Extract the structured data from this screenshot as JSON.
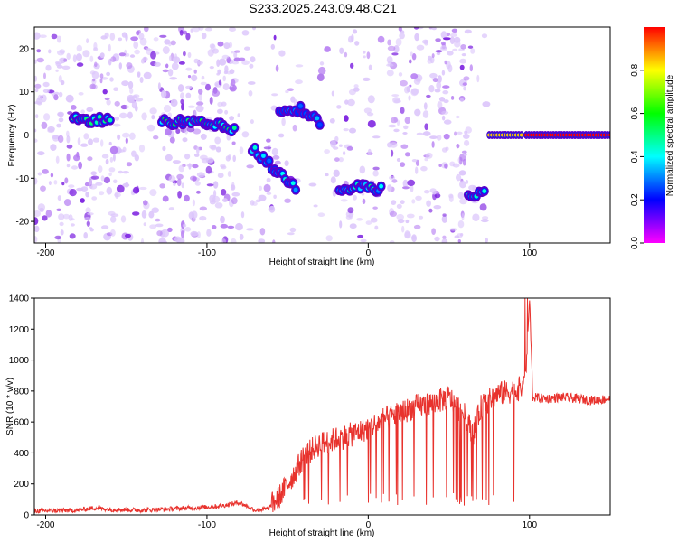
{
  "title": "S233.2025.243.09.48.C21",
  "chart_data": [
    {
      "type": "heatmap",
      "xlabel": "Height of straight line (km)",
      "ylabel": "Frequency (Hz)",
      "xlim": [
        -207,
        150
      ],
      "ylim": [
        -25,
        25
      ],
      "xticks": [
        "-200",
        "-100",
        "0",
        "100"
      ],
      "yticks": [
        "20",
        "10",
        "0",
        "-10",
        "-20"
      ],
      "colorbar": {
        "label": "Normalized spectral amplitude",
        "range": [
          0,
          1
        ],
        "ticks": [
          "0.0",
          "0.2",
          "0.4",
          "0.6",
          "0.8"
        ],
        "colors": [
          "#ff00ff",
          "#0000ff",
          "#00ffff",
          "#00ff00",
          "#ffff00",
          "#ff0000"
        ]
      },
      "tracks": [
        {
          "x": [
            -183,
            -160
          ],
          "y": [
            3.5,
            3.5
          ],
          "amplitude": 0.45
        },
        {
          "x": [
            -128,
            -115,
            -100,
            -90,
            -83
          ],
          "y": [
            3,
            3,
            2.5,
            2,
            1
          ],
          "amplitude": 0.5
        },
        {
          "x": [
            -72,
            -58,
            -45
          ],
          "y": [
            -3,
            -8,
            -12
          ],
          "amplitude": 0.35
        },
        {
          "x": [
            -55,
            -42,
            -30
          ],
          "y": [
            6,
            6,
            3
          ],
          "amplitude": 0.3
        },
        {
          "x": [
            -18,
            -5,
            8
          ],
          "y": [
            -13,
            -12,
            -12.5
          ],
          "amplitude": 0.4
        },
        {
          "x": [
            62,
            72
          ],
          "y": [
            -13.5,
            -13.5
          ],
          "amplitude": 0.4
        },
        {
          "x": [
            75,
            85,
            95
          ],
          "y": [
            0,
            0,
            0
          ],
          "amplitude": 0.85
        },
        {
          "x": [
            98,
            150
          ],
          "y": [
            0,
            0
          ],
          "amplitude": 1.0
        }
      ]
    },
    {
      "type": "line",
      "xlabel": "Height of straight line (km)",
      "ylabel": "SNR (10 * v/v)",
      "xlim": [
        -207,
        150
      ],
      "ylim": [
        0,
        1400
      ],
      "xticks": [
        "-200",
        "-100",
        "0",
        "100"
      ],
      "yticks": [
        "1400",
        "1200",
        "1000",
        "800",
        "600",
        "400",
        "200",
        "0"
      ],
      "color": "#e8322d",
      "series": [
        {
          "x": [
            -207,
            -180,
            -170,
            -160,
            -140,
            -120,
            -100,
            -90,
            -80,
            -70,
            -62,
            -55,
            -45,
            -40,
            -35,
            -30,
            -25,
            -20,
            -10,
            0,
            10,
            20,
            30,
            40,
            50,
            55,
            60,
            65,
            70,
            75,
            80,
            90,
            95,
            98,
            100,
            102,
            110,
            120,
            130,
            140,
            150
          ],
          "y": [
            25,
            30,
            45,
            35,
            30,
            40,
            50,
            60,
            80,
            30,
            40,
            120,
            280,
            380,
            420,
            460,
            470,
            490,
            520,
            560,
            620,
            660,
            700,
            720,
            760,
            700,
            640,
            520,
            700,
            740,
            780,
            800,
            820,
            950,
            1400,
            760,
            750,
            760,
            750,
            740,
            750
          ]
        }
      ]
    }
  ]
}
